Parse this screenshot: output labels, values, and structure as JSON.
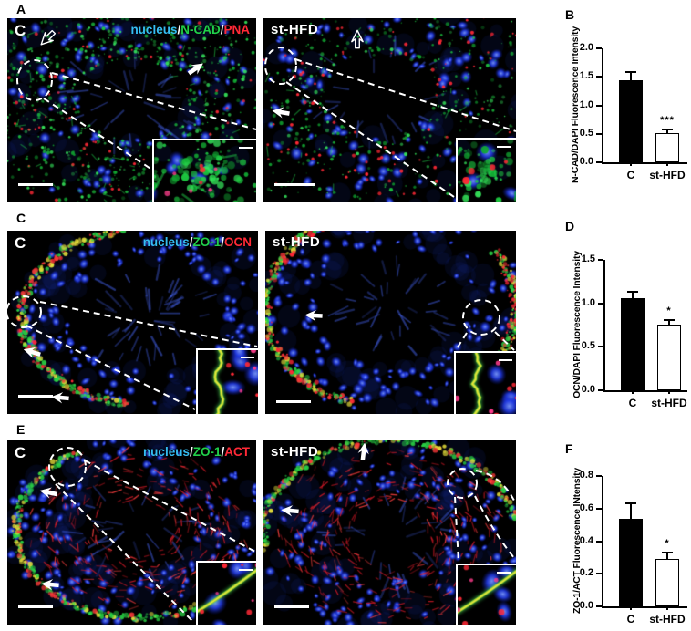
{
  "figure": {
    "background": "#ffffff",
    "channel_colors": {
      "nucleus_blue": "#35bdf2",
      "green": "#21d04a",
      "red": "#ff2936",
      "yellow": "#ece43c",
      "separator_white": "#ffffff",
      "nuclei_stain": "#2236e0"
    },
    "rows": [
      {
        "panel_label": "A",
        "left_label": "C",
        "right_label": "st-HFD",
        "legend": [
          {
            "text": "nucleus",
            "color": "#35bdf2"
          },
          {
            "text": "/",
            "color": "#ffffff"
          },
          {
            "text": "N-CAD",
            "color": "#21d04a"
          },
          {
            "text": "/",
            "color": "#ffffff"
          },
          {
            "text": "PNA",
            "color": "#ff2936"
          }
        ]
      },
      {
        "panel_label": "C",
        "left_label": "C",
        "right_label": "st-HFD",
        "legend": [
          {
            "text": "nucleus",
            "color": "#35bdf2"
          },
          {
            "text": "/",
            "color": "#ffffff"
          },
          {
            "text": "ZO-1",
            "color": "#21d04a"
          },
          {
            "text": "/",
            "color": "#ffffff"
          },
          {
            "text": "OCN",
            "color": "#ff2936"
          }
        ]
      },
      {
        "panel_label": "E",
        "left_label": "C",
        "right_label": "st-HFD",
        "legend": [
          {
            "text": "nucleus",
            "color": "#35bdf2"
          },
          {
            "text": "/",
            "color": "#ffffff"
          },
          {
            "text": "ZO-1",
            "color": "#21d04a"
          },
          {
            "text": "/",
            "color": "#ffffff"
          },
          {
            "text": "ACT",
            "color": "#ff2936"
          }
        ]
      }
    ]
  },
  "chart_data": [
    {
      "type": "bar",
      "panel": "B",
      "categories": [
        "C",
        "st-HFD"
      ],
      "values": [
        1.44,
        0.52
      ],
      "errors": [
        0.16,
        0.065
      ],
      "significance": [
        "",
        "***"
      ],
      "title": "",
      "xlabel": "",
      "ylabel": "N-CAD/DAPI Fluorescence Intensity",
      "ylim": [
        0.0,
        2.0
      ],
      "yticks": [
        0.0,
        0.5,
        1.0,
        1.5,
        2.0
      ],
      "bar_colors": [
        "#000000",
        "#ffffff"
      ],
      "grid": false,
      "legend_position": "none"
    },
    {
      "type": "bar",
      "panel": "D",
      "categories": [
        "C",
        "st-HFD"
      ],
      "values": [
        1.06,
        0.76
      ],
      "errors": [
        0.08,
        0.06
      ],
      "significance": [
        "",
        "*"
      ],
      "title": "",
      "xlabel": "",
      "ylabel": "OCN/DAPI Fluorescence Intensity",
      "ylim": [
        0.0,
        1.5
      ],
      "yticks": [
        0.0,
        0.5,
        1.0,
        1.5
      ],
      "bar_colors": [
        "#000000",
        "#ffffff"
      ],
      "grid": false,
      "legend_position": "none"
    },
    {
      "type": "bar",
      "panel": "F",
      "categories": [
        "C",
        "st-HFD"
      ],
      "values": [
        0.535,
        0.29
      ],
      "errors": [
        0.1,
        0.045
      ],
      "significance": [
        "",
        "*"
      ],
      "title": "",
      "xlabel": "",
      "ylabel": "ZO-1/ACT Fluorescence INtensity",
      "ylim": [
        0.0,
        0.8
      ],
      "yticks": [
        0.0,
        0.2,
        0.4,
        0.6,
        0.8
      ],
      "bar_colors": [
        "#000000",
        "#ffffff"
      ],
      "grid": false,
      "legend_position": "none"
    }
  ]
}
